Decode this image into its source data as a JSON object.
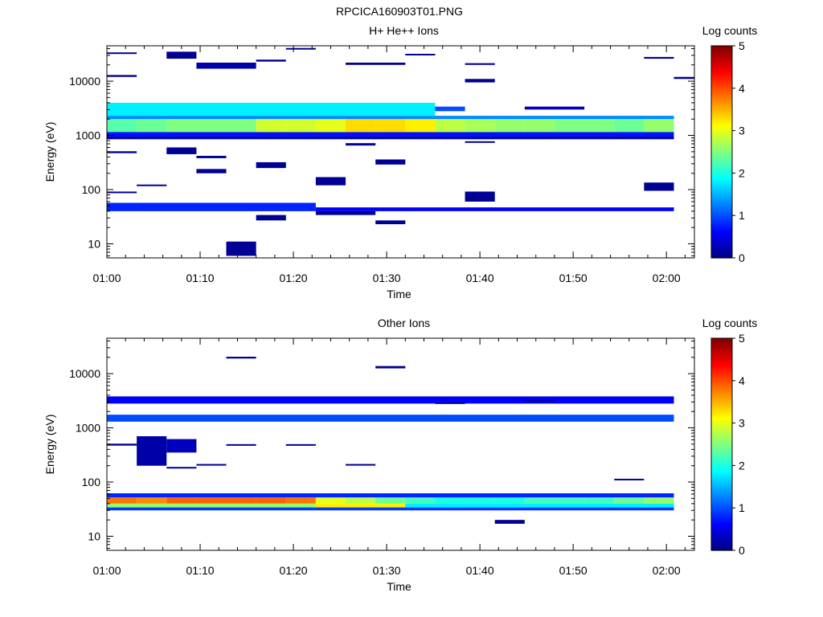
{
  "page_title": "RPCICA160903T01.PNG",
  "colorbar": {
    "label": "Log counts",
    "ticks": [
      "0",
      "1",
      "2",
      "3",
      "4",
      "5"
    ],
    "range": [
      0,
      5
    ],
    "colormap": "jet"
  },
  "chart_data": [
    {
      "type": "heatmap",
      "title": "H+ He++ Ions",
      "xlabel": "Time",
      "ylabel": "Energy (eV)",
      "x_ticks": [
        "01:00",
        "01:10",
        "01:20",
        "01:30",
        "01:40",
        "01:50",
        "02:00"
      ],
      "y_ticks": [
        "10",
        "100",
        "1000",
        "10000"
      ],
      "x_range_minutes": [
        0,
        63
      ],
      "y_scale": "log",
      "y_range": [
        5.5,
        45000
      ],
      "cells": [
        {
          "t": [
            0,
            3.2
          ],
          "e": [
            1150,
            2000
          ],
          "v": 2.3
        },
        {
          "t": [
            3.2,
            6.4
          ],
          "e": [
            1150,
            2000
          ],
          "v": 2.4
        },
        {
          "t": [
            6.4,
            9.6
          ],
          "e": [
            1150,
            2000
          ],
          "v": 2.5
        },
        {
          "t": [
            9.6,
            12.8
          ],
          "e": [
            1150,
            2000
          ],
          "v": 2.5
        },
        {
          "t": [
            12.8,
            16
          ],
          "e": [
            1150,
            2000
          ],
          "v": 2.5
        },
        {
          "t": [
            16,
            19.2
          ],
          "e": [
            1150,
            2000
          ],
          "v": 2.9
        },
        {
          "t": [
            19.2,
            22.4
          ],
          "e": [
            1150,
            2000
          ],
          "v": 2.9
        },
        {
          "t": [
            22.4,
            25.6
          ],
          "e": [
            1150,
            2000
          ],
          "v": 3.0
        },
        {
          "t": [
            25.6,
            28.8
          ],
          "e": [
            1150,
            2000
          ],
          "v": 3.3
        },
        {
          "t": [
            28.8,
            32
          ],
          "e": [
            1150,
            2000
          ],
          "v": 3.3
        },
        {
          "t": [
            32,
            35.2
          ],
          "e": [
            1150,
            2000
          ],
          "v": 3.2
        },
        {
          "t": [
            35.2,
            38.4
          ],
          "e": [
            1150,
            2000
          ],
          "v": 2.8
        },
        {
          "t": [
            38.4,
            41.6
          ],
          "e": [
            1150,
            2000
          ],
          "v": 2.7
        },
        {
          "t": [
            41.6,
            44.8
          ],
          "e": [
            1150,
            2000
          ],
          "v": 2.6
        },
        {
          "t": [
            44.8,
            48
          ],
          "e": [
            1150,
            2000
          ],
          "v": 2.6
        },
        {
          "t": [
            48,
            51.2
          ],
          "e": [
            1150,
            2000
          ],
          "v": 2.5
        },
        {
          "t": [
            51.2,
            54.4
          ],
          "e": [
            1150,
            2000
          ],
          "v": 2.5
        },
        {
          "t": [
            54.4,
            57.6
          ],
          "e": [
            1150,
            2000
          ],
          "v": 2.4
        },
        {
          "t": [
            57.6,
            60.8
          ],
          "e": [
            1150,
            2000
          ],
          "v": 2.6
        },
        {
          "t": [
            0,
            60.8
          ],
          "e": [
            2000,
            2300
          ],
          "v": 1.3
        },
        {
          "t": [
            0,
            35.2
          ],
          "e": [
            2300,
            4000
          ],
          "v": 1.8
        },
        {
          "t": [
            35.2,
            38.4
          ],
          "e": [
            2800,
            3400
          ],
          "v": 1.0
        },
        {
          "t": [
            0,
            60.8
          ],
          "e": [
            950,
            1150
          ],
          "v": 0.7
        },
        {
          "t": [
            0,
            60.8
          ],
          "e": [
            850,
            950
          ],
          "v": 0.2
        },
        {
          "t": [
            0,
            22.4
          ],
          "e": [
            40,
            57
          ],
          "v": 0.8
        },
        {
          "t": [
            22.4,
            60.8
          ],
          "e": [
            40,
            47
          ],
          "v": 0.6
        },
        {
          "t": [
            12.8,
            16
          ],
          "e": [
            6,
            11
          ],
          "v": 0.1
        },
        {
          "t": [
            16,
            19.2
          ],
          "e": [
            27,
            34
          ],
          "v": 0.1
        },
        {
          "t": [
            22.4,
            28.8
          ],
          "e": [
            34,
            40
          ],
          "v": 0.1
        },
        {
          "t": [
            28.8,
            32
          ],
          "e": [
            23,
            27
          ],
          "v": 0.1
        },
        {
          "t": [
            0,
            3.2
          ],
          "e": [
            32000,
            34000
          ],
          "v": 0.1
        },
        {
          "t": [
            6.4,
            9.6
          ],
          "e": [
            26000,
            35000
          ],
          "v": 0.1
        },
        {
          "t": [
            9.6,
            16
          ],
          "e": [
            17000,
            22000
          ],
          "v": 0.2
        },
        {
          "t": [
            16,
            19.2
          ],
          "e": [
            23000,
            25000
          ],
          "v": 0.1
        },
        {
          "t": [
            19.2,
            22.4
          ],
          "e": [
            39000,
            41000
          ],
          "v": 0.1
        },
        {
          "t": [
            25.6,
            32
          ],
          "e": [
            20000,
            22000
          ],
          "v": 0.1
        },
        {
          "t": [
            32,
            35.2
          ],
          "e": [
            30000,
            32000
          ],
          "v": 0.1
        },
        {
          "t": [
            38.4,
            41.6
          ],
          "e": [
            9500,
            11000
          ],
          "v": 0.1
        },
        {
          "t": [
            38.4,
            41.6
          ],
          "e": [
            20000,
            21500
          ],
          "v": 0.1
        },
        {
          "t": [
            0,
            3.2
          ],
          "e": [
            12000,
            13000
          ],
          "v": 0.1
        },
        {
          "t": [
            60.8,
            63
          ],
          "e": [
            11000,
            12000
          ],
          "v": 0.1
        },
        {
          "t": [
            57.6,
            60.8
          ],
          "e": [
            26000,
            28000
          ],
          "v": 0.1
        },
        {
          "t": [
            44.8,
            48
          ],
          "e": [
            3000,
            3400
          ],
          "v": 0.3
        },
        {
          "t": [
            48,
            51.2
          ],
          "e": [
            3000,
            3400
          ],
          "v": 0.3
        },
        {
          "t": [
            0,
            3.2
          ],
          "e": [
            470,
            510
          ],
          "v": 0.1
        },
        {
          "t": [
            6.4,
            9.6
          ],
          "e": [
            450,
            600
          ],
          "v": 0.1
        },
        {
          "t": [
            9.6,
            12.8
          ],
          "e": [
            380,
            420
          ],
          "v": 0.1
        },
        {
          "t": [
            9.6,
            12.8
          ],
          "e": [
            200,
            240
          ],
          "v": 0.1
        },
        {
          "t": [
            16,
            19.2
          ],
          "e": [
            250,
            320
          ],
          "v": 0.1
        },
        {
          "t": [
            22.4,
            25.6
          ],
          "e": [
            120,
            170
          ],
          "v": 0.1
        },
        {
          "t": [
            28.8,
            32
          ],
          "e": [
            290,
            360
          ],
          "v": 0.1
        },
        {
          "t": [
            0,
            3.2
          ],
          "e": [
            88,
            92
          ],
          "v": 0.1
        },
        {
          "t": [
            3.2,
            6.4
          ],
          "e": [
            118,
            124
          ],
          "v": 0.1
        },
        {
          "t": [
            38.4,
            41.6
          ],
          "e": [
            60,
            92
          ],
          "v": 0.1
        },
        {
          "t": [
            57.6,
            60.8
          ],
          "e": [
            95,
            135
          ],
          "v": 0.1
        },
        {
          "t": [
            25.6,
            28.8
          ],
          "e": [
            650,
            720
          ],
          "v": 0.1
        },
        {
          "t": [
            38.4,
            41.6
          ],
          "e": [
            730,
            780
          ],
          "v": 0.1
        }
      ]
    },
    {
      "type": "heatmap",
      "title": "Other Ions",
      "xlabel": "Time",
      "ylabel": "Energy (eV)",
      "x_ticks": [
        "01:00",
        "01:10",
        "01:20",
        "01:30",
        "01:40",
        "01:50",
        "02:00"
      ],
      "y_ticks": [
        "10",
        "100",
        "1000",
        "10000"
      ],
      "x_range_minutes": [
        0,
        63
      ],
      "y_scale": "log",
      "y_range": [
        5.5,
        45000
      ],
      "cells": [
        {
          "t": [
            0,
            3.2
          ],
          "e": [
            40,
            52
          ],
          "v": 3.8
        },
        {
          "t": [
            3.2,
            6.4
          ],
          "e": [
            40,
            52
          ],
          "v": 3.7
        },
        {
          "t": [
            6.4,
            9.6
          ],
          "e": [
            40,
            52
          ],
          "v": 3.9
        },
        {
          "t": [
            9.6,
            12.8
          ],
          "e": [
            40,
            52
          ],
          "v": 3.9
        },
        {
          "t": [
            12.8,
            16
          ],
          "e": [
            40,
            52
          ],
          "v": 3.9
        },
        {
          "t": [
            16,
            19.2
          ],
          "e": [
            40,
            52
          ],
          "v": 3.9
        },
        {
          "t": [
            19.2,
            22.4
          ],
          "e": [
            40,
            52
          ],
          "v": 3.8
        },
        {
          "t": [
            22.4,
            25.6
          ],
          "e": [
            40,
            52
          ],
          "v": 3.0
        },
        {
          "t": [
            25.6,
            28.8
          ],
          "e": [
            40,
            52
          ],
          "v": 2.8
        },
        {
          "t": [
            28.8,
            32
          ],
          "e": [
            40,
            52
          ],
          "v": 2.4
        },
        {
          "t": [
            32,
            35.2
          ],
          "e": [
            40,
            52
          ],
          "v": 2.2
        },
        {
          "t": [
            35.2,
            38.4
          ],
          "e": [
            40,
            52
          ],
          "v": 2.0
        },
        {
          "t": [
            38.4,
            41.6
          ],
          "e": [
            40,
            52
          ],
          "v": 2.0
        },
        {
          "t": [
            41.6,
            44.8
          ],
          "e": [
            40,
            52
          ],
          "v": 2.0
        },
        {
          "t": [
            44.8,
            48
          ],
          "e": [
            40,
            52
          ],
          "v": 2.2
        },
        {
          "t": [
            48,
            51.2
          ],
          "e": [
            40,
            52
          ],
          "v": 2.2
        },
        {
          "t": [
            51.2,
            54.4
          ],
          "e": [
            40,
            52
          ],
          "v": 2.2
        },
        {
          "t": [
            54.4,
            57.6
          ],
          "e": [
            40,
            52
          ],
          "v": 2.4
        },
        {
          "t": [
            57.6,
            60.8
          ],
          "e": [
            40,
            52
          ],
          "v": 2.6
        },
        {
          "t": [
            0,
            22.4
          ],
          "e": [
            34,
            40
          ],
          "v": 2.6
        },
        {
          "t": [
            22.4,
            32
          ],
          "e": [
            34,
            40
          ],
          "v": 3.2
        },
        {
          "t": [
            32,
            60.8
          ],
          "e": [
            34,
            40
          ],
          "v": 1.8
        },
        {
          "t": [
            0,
            60.8
          ],
          "e": [
            30,
            34
          ],
          "v": 0.9
        },
        {
          "t": [
            0,
            60.8
          ],
          "e": [
            52,
            62
          ],
          "v": 0.8
        },
        {
          "t": [
            0,
            60.8
          ],
          "e": [
            1300,
            1750
          ],
          "v": 1.0
        },
        {
          "t": [
            0,
            60.8
          ],
          "e": [
            2800,
            3800
          ],
          "v": 0.6
        },
        {
          "t": [
            12.8,
            16
          ],
          "e": [
            19000,
            20500
          ],
          "v": 0.1
        },
        {
          "t": [
            28.8,
            32
          ],
          "e": [
            12500,
            13800
          ],
          "v": 0.1
        },
        {
          "t": [
            41.6,
            44.8
          ],
          "e": [
            17,
            20
          ],
          "v": 0.1
        },
        {
          "t": [
            54.4,
            57.6
          ],
          "e": [
            108,
            115
          ],
          "v": 0.1
        },
        {
          "t": [
            0,
            3.2
          ],
          "e": [
            470,
            510
          ],
          "v": 0.1
        },
        {
          "t": [
            3.2,
            6.4
          ],
          "e": [
            200,
            700
          ],
          "v": 0.2
        },
        {
          "t": [
            6.4,
            9.6
          ],
          "e": [
            350,
            620
          ],
          "v": 0.3
        },
        {
          "t": [
            6.4,
            9.6
          ],
          "e": [
            180,
            190
          ],
          "v": 0.1
        },
        {
          "t": [
            9.6,
            12.8
          ],
          "e": [
            205,
            215
          ],
          "v": 0.1
        },
        {
          "t": [
            12.8,
            16
          ],
          "e": [
            470,
            500
          ],
          "v": 0.1
        },
        {
          "t": [
            19.2,
            22.4
          ],
          "e": [
            470,
            500
          ],
          "v": 0.1
        },
        {
          "t": [
            25.6,
            28.8
          ],
          "e": [
            205,
            215
          ],
          "v": 0.1
        },
        {
          "t": [
            44.8,
            48
          ],
          "e": [
            3100,
            3300
          ],
          "v": 0.1
        },
        {
          "t": [
            35.2,
            38.4
          ],
          "e": [
            2850,
            2950
          ],
          "v": 0.1
        }
      ]
    }
  ]
}
